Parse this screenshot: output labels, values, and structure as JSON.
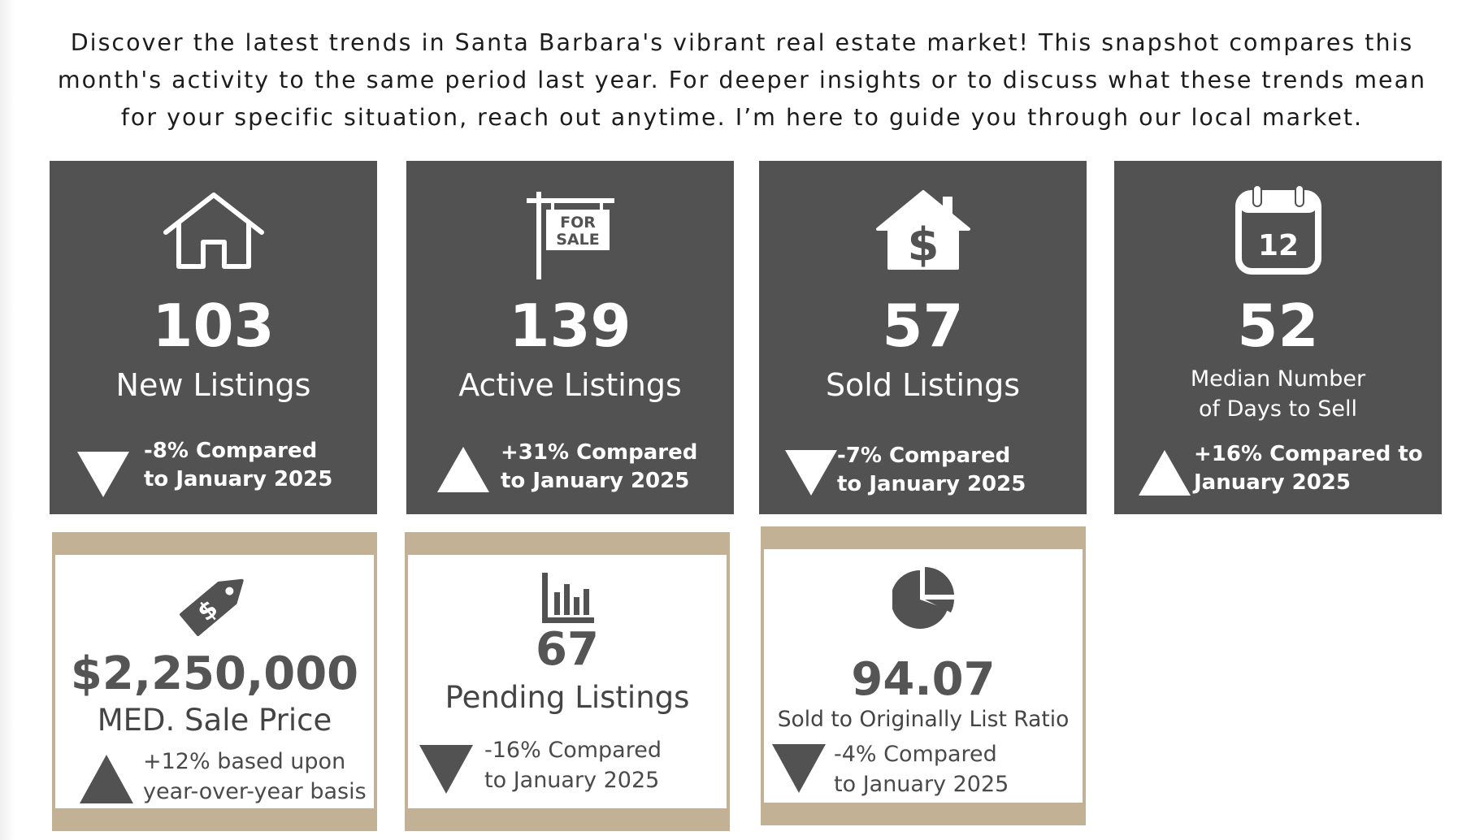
{
  "intro": {
    "text": "Discover the latest trends in Santa Barbara's vibrant real estate market! This snapshot compares this month's activity to the same period last year. For deeper insights or to discuss what these trends mean for your specific situation, reach out anytime. I’m here to guide you through our local market."
  },
  "colors": {
    "dark_card": "#525252",
    "tan_frame": "#c2b194",
    "light_text": "#555555"
  },
  "cards": [
    {
      "icon": "house-icon",
      "value": "103",
      "label": "New Listings",
      "trend": "down",
      "change_line1": "-8% Compared",
      "change_line2": "to January 2025"
    },
    {
      "icon": "for-sale-sign-icon",
      "sign_line1": "FOR",
      "sign_line2": "SALE",
      "value": "139",
      "label": "Active Listings",
      "trend": "up",
      "change_line1": "+31% Compared",
      "change_line2": "to January 2025"
    },
    {
      "icon": "house-dollar-icon",
      "value": "57",
      "label": "Sold Listings",
      "trend": "down",
      "change_line1": "-7% Compared",
      "change_line2": "to January 2025"
    },
    {
      "icon": "calendar-icon",
      "calendar_day": "12",
      "value": "52",
      "label_line1": "Median Number",
      "label_line2": "of Days to Sell",
      "trend": "up",
      "change_line1": "+16% Compared to",
      "change_line2": "January 2025"
    }
  ],
  "bottom_cards": [
    {
      "icon": "price-tag-icon",
      "value": "$2,250,000",
      "label": "MED. Sale Price",
      "trend": "up",
      "change_line1": "+12% based upon",
      "change_line2": "year-over-year basis"
    },
    {
      "icon": "bar-chart-icon",
      "value": "67",
      "label": "Pending Listings",
      "trend": "down",
      "change_line1": "-16% Compared",
      "change_line2": "to January 2025"
    },
    {
      "icon": "pie-chart-icon",
      "value": "94.07",
      "label": "Sold to Originally List Ratio",
      "trend": "down",
      "change_line1": "-4% Compared",
      "change_line2": "to January 2025"
    }
  ]
}
